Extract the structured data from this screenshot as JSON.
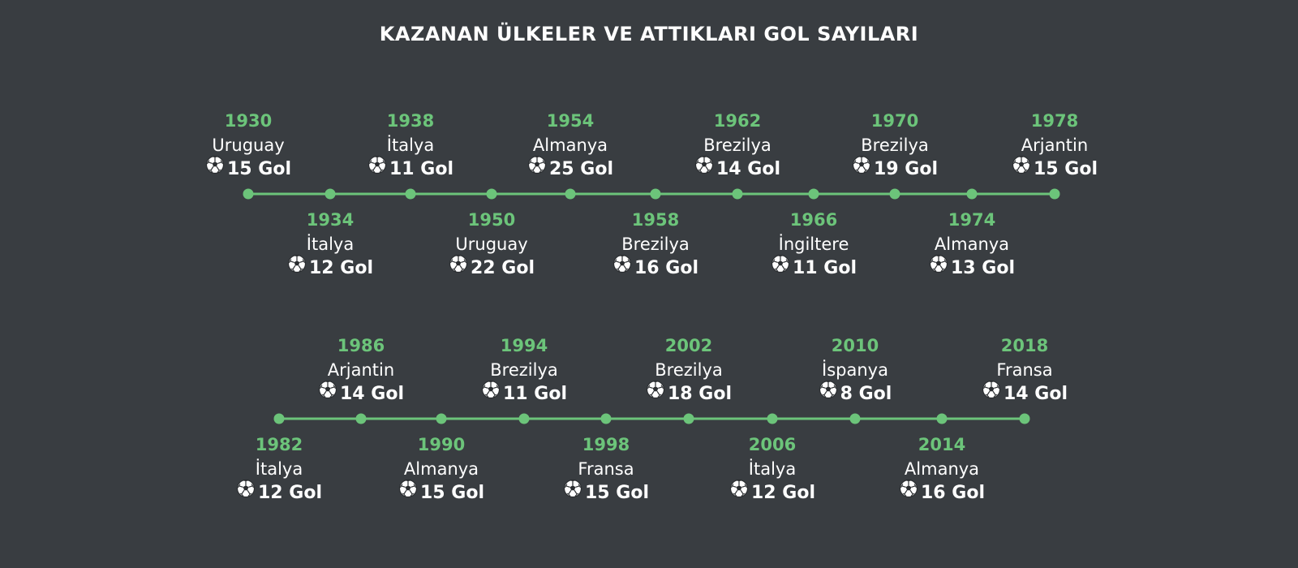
{
  "title": "KAZANAN ÜLKELER VE ATTIKLARI GOL SAYILARI",
  "colors": {
    "background": "#393d41",
    "accent": "#6cc47a",
    "text": "#ffffff"
  },
  "goal_icon": "soccer-ball-icon",
  "timelines": [
    {
      "events": [
        {
          "year": "1930",
          "country": "Uruguay",
          "goals": "15 Gol"
        },
        {
          "year": "1934",
          "country": "İtalya",
          "goals": "12 Gol"
        },
        {
          "year": "1938",
          "country": "İtalya",
          "goals": "11 Gol"
        },
        {
          "year": "1950",
          "country": "Uruguay",
          "goals": "22 Gol"
        },
        {
          "year": "1954",
          "country": "Almanya",
          "goals": "25 Gol"
        },
        {
          "year": "1958",
          "country": "Brezilya",
          "goals": "16 Gol"
        },
        {
          "year": "1962",
          "country": "Brezilya",
          "goals": "14 Gol"
        },
        {
          "year": "1966",
          "country": "İngiltere",
          "goals": "11 Gol"
        },
        {
          "year": "1970",
          "country": "Brezilya",
          "goals": "19 Gol"
        },
        {
          "year": "1974",
          "country": "Almanya",
          "goals": "13 Gol"
        },
        {
          "year": "1978",
          "country": "Arjantin",
          "goals": "15 Gol"
        }
      ]
    },
    {
      "events": [
        {
          "year": "1982",
          "country": "İtalya",
          "goals": "12 Gol"
        },
        {
          "year": "1986",
          "country": "Arjantin",
          "goals": "14 Gol"
        },
        {
          "year": "1990",
          "country": "Almanya",
          "goals": "15 Gol"
        },
        {
          "year": "1994",
          "country": "Brezilya",
          "goals": "11 Gol"
        },
        {
          "year": "1998",
          "country": "Fransa",
          "goals": "15 Gol"
        },
        {
          "year": "2002",
          "country": "Brezilya",
          "goals": "18 Gol"
        },
        {
          "year": "2006",
          "country": "İtalya",
          "goals": "12 Gol"
        },
        {
          "year": "2010",
          "country": "İspanya",
          "goals": "8 Gol"
        },
        {
          "year": "2014",
          "country": "Almanya",
          "goals": "16 Gol"
        },
        {
          "year": "2018",
          "country": "Fransa",
          "goals": "14 Gol"
        }
      ]
    }
  ]
}
